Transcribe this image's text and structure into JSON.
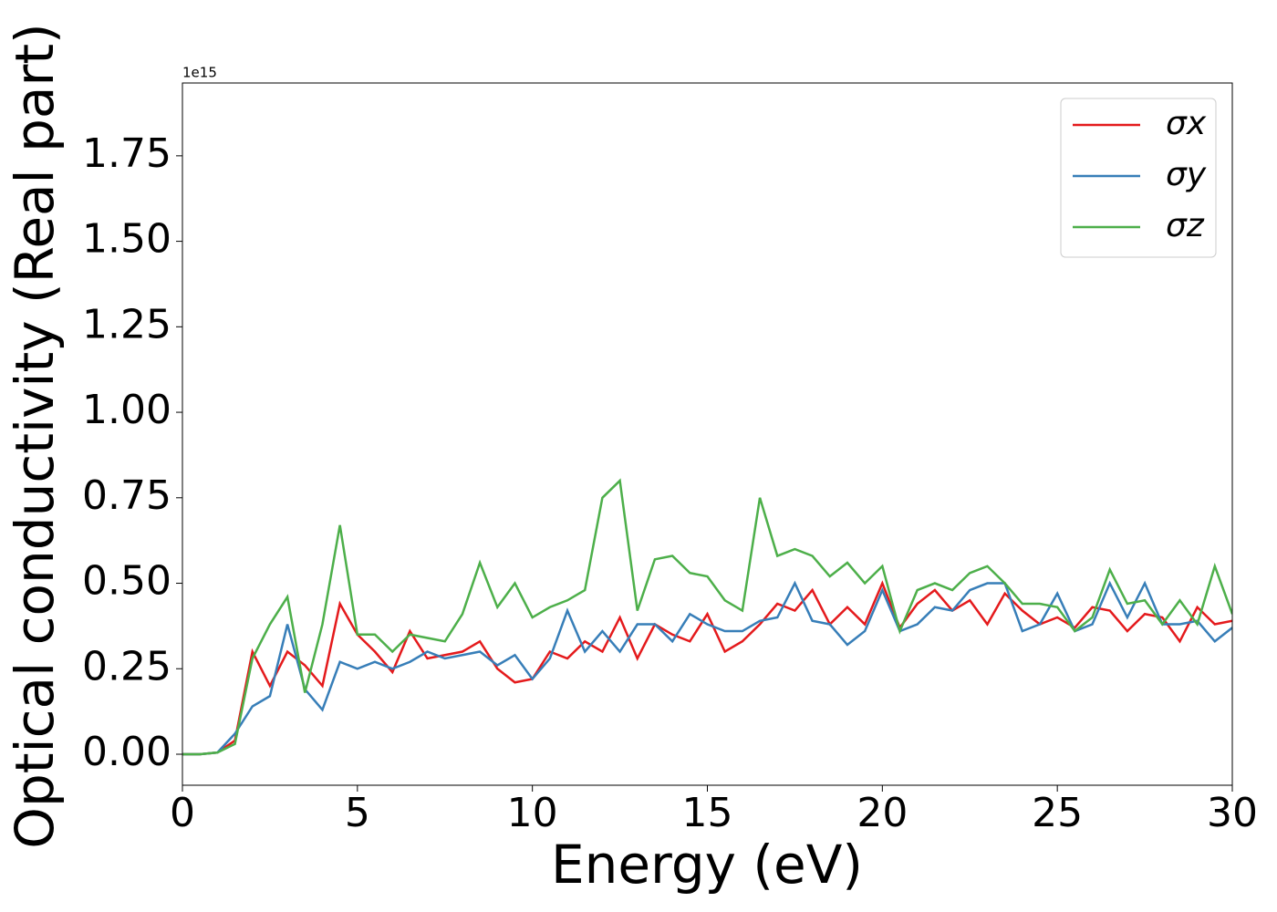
{
  "chart_data": {
    "type": "line",
    "xlabel": "Energy (eV)",
    "ylabel": "Optical conductivity (Real part)",
    "y_offset_label": "1e15",
    "x": [
      0,
      0.5,
      1,
      1.5,
      2,
      2.5,
      3,
      3.5,
      4,
      4.5,
      5,
      5.5,
      6,
      6.5,
      7,
      7.5,
      8,
      8.5,
      9,
      9.5,
      10,
      10.5,
      11,
      11.5,
      12,
      12.5,
      13,
      13.5,
      14,
      14.5,
      15,
      15.5,
      16,
      16.5,
      17,
      17.5,
      18,
      18.5,
      19,
      19.5,
      20,
      20.5,
      21,
      21.5,
      22,
      22.5,
      23,
      23.5,
      24,
      24.5,
      25,
      25.5,
      26,
      26.5,
      27,
      27.5,
      28,
      28.5,
      29,
      29.5,
      30
    ],
    "series": [
      {
        "name": "σx",
        "color": "#e41a1c",
        "values": [
          0,
          0,
          0.005,
          0.04,
          0.3,
          0.2,
          0.3,
          0.26,
          0.2,
          0.44,
          0.35,
          0.3,
          0.24,
          0.36,
          0.28,
          0.29,
          0.3,
          0.33,
          0.25,
          0.21,
          0.22,
          0.3,
          0.28,
          0.33,
          0.3,
          0.4,
          0.28,
          0.38,
          0.35,
          0.33,
          0.41,
          0.3,
          0.33,
          0.38,
          0.44,
          0.42,
          0.48,
          0.38,
          0.43,
          0.38,
          0.5,
          0.37,
          0.44,
          0.48,
          0.42,
          0.45,
          0.38,
          0.47,
          0.42,
          0.38,
          0.4,
          0.37,
          0.43,
          0.42,
          0.36,
          0.41,
          0.4,
          0.33,
          0.43,
          0.38,
          0.39
        ]
      },
      {
        "name": "σy",
        "color": "#377eb8",
        "values": [
          0,
          0,
          0.005,
          0.06,
          0.14,
          0.17,
          0.38,
          0.19,
          0.13,
          0.27,
          0.25,
          0.27,
          0.25,
          0.27,
          0.3,
          0.28,
          0.29,
          0.3,
          0.26,
          0.29,
          0.22,
          0.28,
          0.42,
          0.3,
          0.36,
          0.3,
          0.38,
          0.38,
          0.33,
          0.41,
          0.38,
          0.36,
          0.36,
          0.39,
          0.4,
          0.5,
          0.39,
          0.38,
          0.32,
          0.36,
          0.48,
          0.36,
          0.38,
          0.43,
          0.42,
          0.48,
          0.5,
          0.5,
          0.36,
          0.38,
          0.47,
          0.36,
          0.38,
          0.5,
          0.4,
          0.5,
          0.38,
          0.38,
          0.39,
          0.33,
          0.37
        ]
      },
      {
        "name": "σz",
        "color": "#4daf4a",
        "values": [
          0,
          0,
          0.005,
          0.03,
          0.28,
          0.38,
          0.46,
          0.18,
          0.38,
          0.67,
          0.35,
          0.35,
          0.3,
          0.35,
          0.34,
          0.33,
          0.41,
          0.56,
          0.43,
          0.5,
          0.4,
          0.43,
          0.45,
          0.48,
          0.75,
          0.8,
          0.42,
          0.57,
          0.58,
          0.53,
          0.52,
          0.45,
          0.42,
          0.75,
          0.58,
          0.6,
          0.58,
          0.52,
          0.56,
          0.5,
          0.55,
          0.36,
          0.48,
          0.5,
          0.48,
          0.53,
          0.55,
          0.5,
          0.44,
          0.44,
          0.43,
          0.36,
          0.4,
          0.54,
          0.44,
          0.45,
          0.38,
          0.45,
          0.38,
          0.55,
          0.41
        ]
      }
    ],
    "xlim": [
      0,
      30
    ],
    "xticks": [
      0,
      5,
      10,
      15,
      20,
      25,
      30
    ],
    "ylim": [
      -0.0907,
      1.963
    ],
    "yticks": [
      {
        "value": 0,
        "label": "0.00"
      },
      {
        "value": 0.25,
        "label": "0.25"
      },
      {
        "value": 0.5,
        "label": "0.50"
      },
      {
        "value": 0.75,
        "label": "0.75"
      },
      {
        "value": 1,
        "label": "1.00"
      },
      {
        "value": 1.25,
        "label": "1.25"
      },
      {
        "value": 1.5,
        "label": "1.50"
      },
      {
        "value": 1.75,
        "label": "1.75"
      }
    ],
    "legend": "upper right"
  }
}
